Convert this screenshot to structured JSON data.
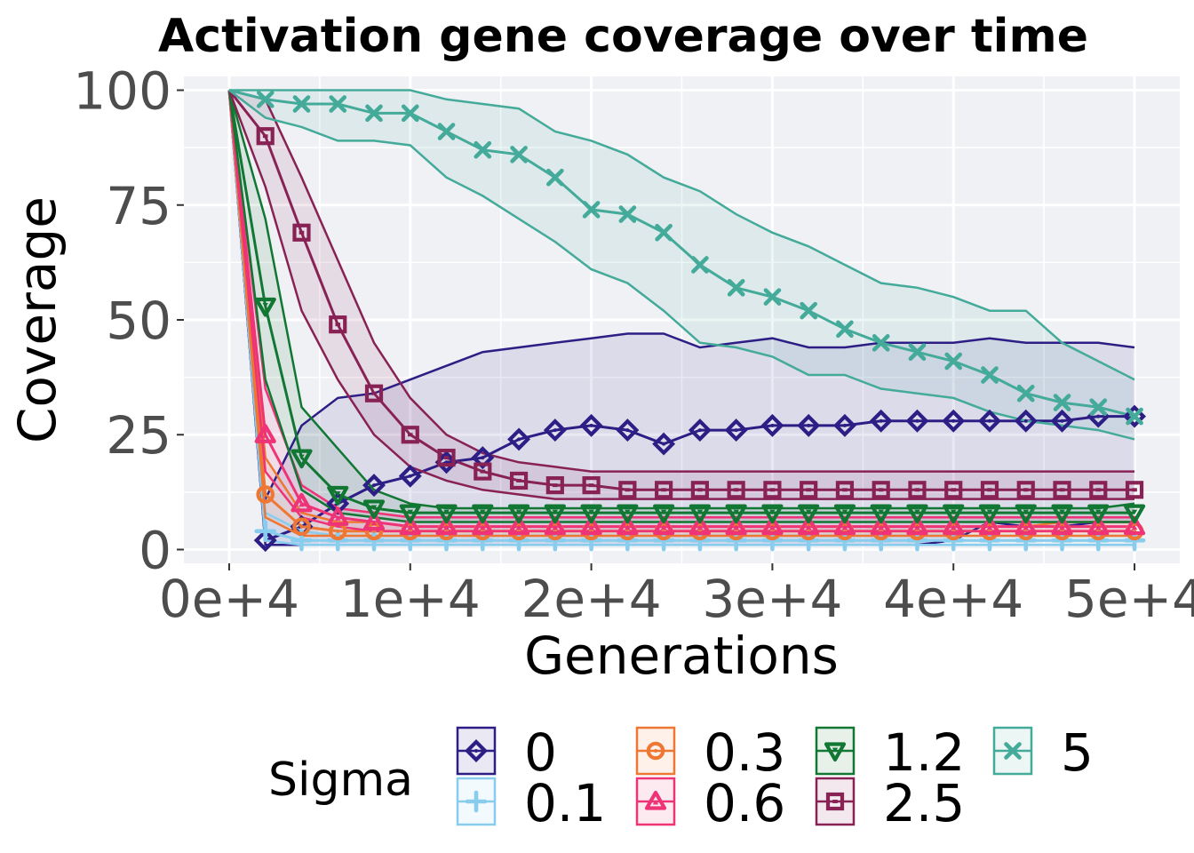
{
  "chart_data": {
    "type": "line",
    "title": "Activation gene coverage over time",
    "xlabel": "Generations",
    "ylabel": "Coverage",
    "xlim": [
      -2500,
      52500
    ],
    "ylim": [
      -3,
      103
    ],
    "x_ticks": [
      0,
      10000,
      20000,
      30000,
      40000,
      50000
    ],
    "x_tick_labels": [
      "0e+4",
      "1e+4",
      "2e+4",
      "3e+4",
      "4e+4",
      "5e+4"
    ],
    "y_ticks": [
      0,
      25,
      50,
      75,
      100
    ],
    "y_tick_labels": [
      "0",
      "25",
      "50",
      "75",
      "100"
    ],
    "grid": true,
    "panel_background": "#f0f1f5",
    "legend": {
      "title": "Sigma",
      "position": "bottom"
    },
    "marker_x": [
      2000,
      4000,
      6000,
      8000,
      10000,
      12000,
      14000,
      16000,
      18000,
      20000,
      22000,
      24000,
      26000,
      28000,
      30000,
      32000,
      34000,
      36000,
      38000,
      40000,
      42000,
      44000,
      46000,
      48000,
      50000
    ],
    "series": [
      {
        "name": "0",
        "color": "#2d1e86",
        "marker": "diamond",
        "median": [
          2,
          5,
          10,
          14,
          16,
          19,
          20,
          24,
          26,
          27,
          26,
          23,
          26,
          26,
          27,
          27,
          27,
          28,
          28,
          28,
          28,
          28,
          28,
          29,
          29
        ],
        "upper": [
          11,
          27,
          33,
          34,
          37,
          40,
          43,
          44,
          45,
          46,
          47,
          47,
          44,
          45,
          46,
          44,
          44,
          45,
          45,
          45,
          46,
          45,
          45,
          45,
          44
        ],
        "lower": [
          1,
          1,
          1,
          1,
          1,
          1,
          1,
          1,
          1,
          1,
          1,
          1,
          1,
          1,
          1,
          1,
          1,
          1,
          1,
          2,
          6,
          5,
          5,
          6,
          6
        ]
      },
      {
        "name": "0.1",
        "color": "#88ccee",
        "marker": "plus",
        "median": [
          4,
          2,
          2,
          2,
          2,
          2,
          2,
          2,
          2,
          2,
          2,
          2,
          2,
          2,
          2,
          2,
          2,
          2,
          2,
          2,
          2,
          2,
          2,
          2,
          2
        ],
        "upper": [
          8,
          4,
          3,
          3,
          3,
          3,
          3,
          3,
          3,
          3,
          3,
          3,
          3,
          3,
          3,
          3,
          3,
          3,
          3,
          3,
          3,
          3,
          3,
          3,
          3
        ],
        "lower": [
          2,
          1,
          1,
          1,
          1,
          1,
          1,
          1,
          1,
          1,
          1,
          1,
          1,
          1,
          1,
          1,
          1,
          1,
          1,
          1,
          1,
          1,
          1,
          1,
          1
        ]
      },
      {
        "name": "0.3",
        "color": "#ee7733",
        "marker": "circle",
        "median": [
          12,
          5,
          4,
          4,
          4,
          4,
          4,
          4,
          4,
          4,
          4,
          4,
          4,
          4,
          4,
          4,
          4,
          4,
          4,
          4,
          4,
          4,
          4,
          4,
          4
        ],
        "upper": [
          20,
          8,
          6,
          6,
          5,
          5,
          5,
          5,
          5,
          5,
          5,
          5,
          5,
          5,
          5,
          5,
          5,
          5,
          5,
          5,
          5,
          5,
          6,
          6,
          6
        ],
        "lower": [
          7,
          3,
          3,
          3,
          3,
          3,
          3,
          3,
          3,
          3,
          3,
          3,
          3,
          3,
          3,
          3,
          3,
          3,
          3,
          3,
          3,
          3,
          3,
          3,
          3
        ]
      },
      {
        "name": "0.6",
        "color": "#ee3377",
        "marker": "triangle-up",
        "median": [
          25,
          10,
          7,
          6,
          5,
          5,
          5,
          5,
          5,
          5,
          5,
          5,
          5,
          5,
          5,
          5,
          5,
          5,
          5,
          5,
          5,
          5,
          5,
          5,
          5
        ],
        "upper": [
          35,
          14,
          9,
          8,
          7,
          7,
          7,
          7,
          7,
          7,
          7,
          7,
          7,
          7,
          7,
          7,
          7,
          7,
          7,
          7,
          7,
          7,
          7,
          7,
          7
        ],
        "lower": [
          17,
          7,
          5,
          4,
          4,
          4,
          4,
          4,
          4,
          4,
          4,
          4,
          4,
          4,
          4,
          4,
          4,
          4,
          4,
          4,
          4,
          4,
          4,
          4,
          4
        ]
      },
      {
        "name": "1.2",
        "color": "#117733",
        "marker": "triangle-down",
        "median": [
          53,
          20,
          12,
          9,
          8,
          8,
          8,
          8,
          8,
          8,
          8,
          8,
          8,
          8,
          8,
          8,
          8,
          8,
          8,
          8,
          8,
          8,
          8,
          8,
          8
        ],
        "upper": [
          72,
          31,
          22,
          13,
          10,
          9,
          9,
          9,
          9,
          9,
          9,
          9,
          9,
          9,
          9,
          9,
          9,
          9,
          9,
          9,
          9,
          9,
          9,
          9,
          10
        ],
        "lower": [
          37,
          13,
          8,
          7,
          6,
          6,
          6,
          6,
          6,
          6,
          6,
          6,
          6,
          6,
          6,
          6,
          6,
          6,
          6,
          6,
          6,
          6,
          6,
          6,
          6
        ]
      },
      {
        "name": "2.5",
        "color": "#882255",
        "marker": "square",
        "median": [
          90,
          69,
          49,
          34,
          25,
          20,
          17,
          15,
          14,
          14,
          13,
          13,
          13,
          13,
          13,
          13,
          13,
          13,
          13,
          13,
          13,
          13,
          13,
          13,
          13
        ],
        "upper": [
          98,
          81,
          63,
          45,
          33,
          25,
          21,
          19,
          18,
          17,
          17,
          17,
          17,
          17,
          17,
          17,
          17,
          17,
          17,
          17,
          17,
          17,
          17,
          17,
          17
        ],
        "lower": [
          79,
          52,
          37,
          25,
          18,
          15,
          13,
          12,
          11,
          11,
          11,
          11,
          11,
          11,
          11,
          11,
          11,
          11,
          11,
          11,
          11,
          11,
          11,
          11,
          11
        ]
      },
      {
        "name": "5",
        "color": "#44aa99",
        "marker": "x",
        "median": [
          98,
          97,
          97,
          95,
          95,
          91,
          87,
          86,
          81,
          74,
          73,
          69,
          62,
          57,
          55,
          52,
          48,
          45,
          43,
          41,
          38,
          34,
          32,
          31,
          29
        ],
        "upper": [
          100,
          100,
          100,
          100,
          100,
          98,
          97,
          96,
          91,
          89,
          86,
          81,
          78,
          73,
          69,
          66,
          62,
          58,
          57,
          55,
          52,
          52,
          45,
          41,
          37
        ],
        "lower": [
          94,
          92,
          89,
          89,
          88,
          81,
          77,
          72,
          67,
          61,
          58,
          52,
          45,
          44,
          42,
          38,
          38,
          35,
          34,
          33,
          30,
          28,
          27,
          26,
          24
        ]
      }
    ]
  }
}
